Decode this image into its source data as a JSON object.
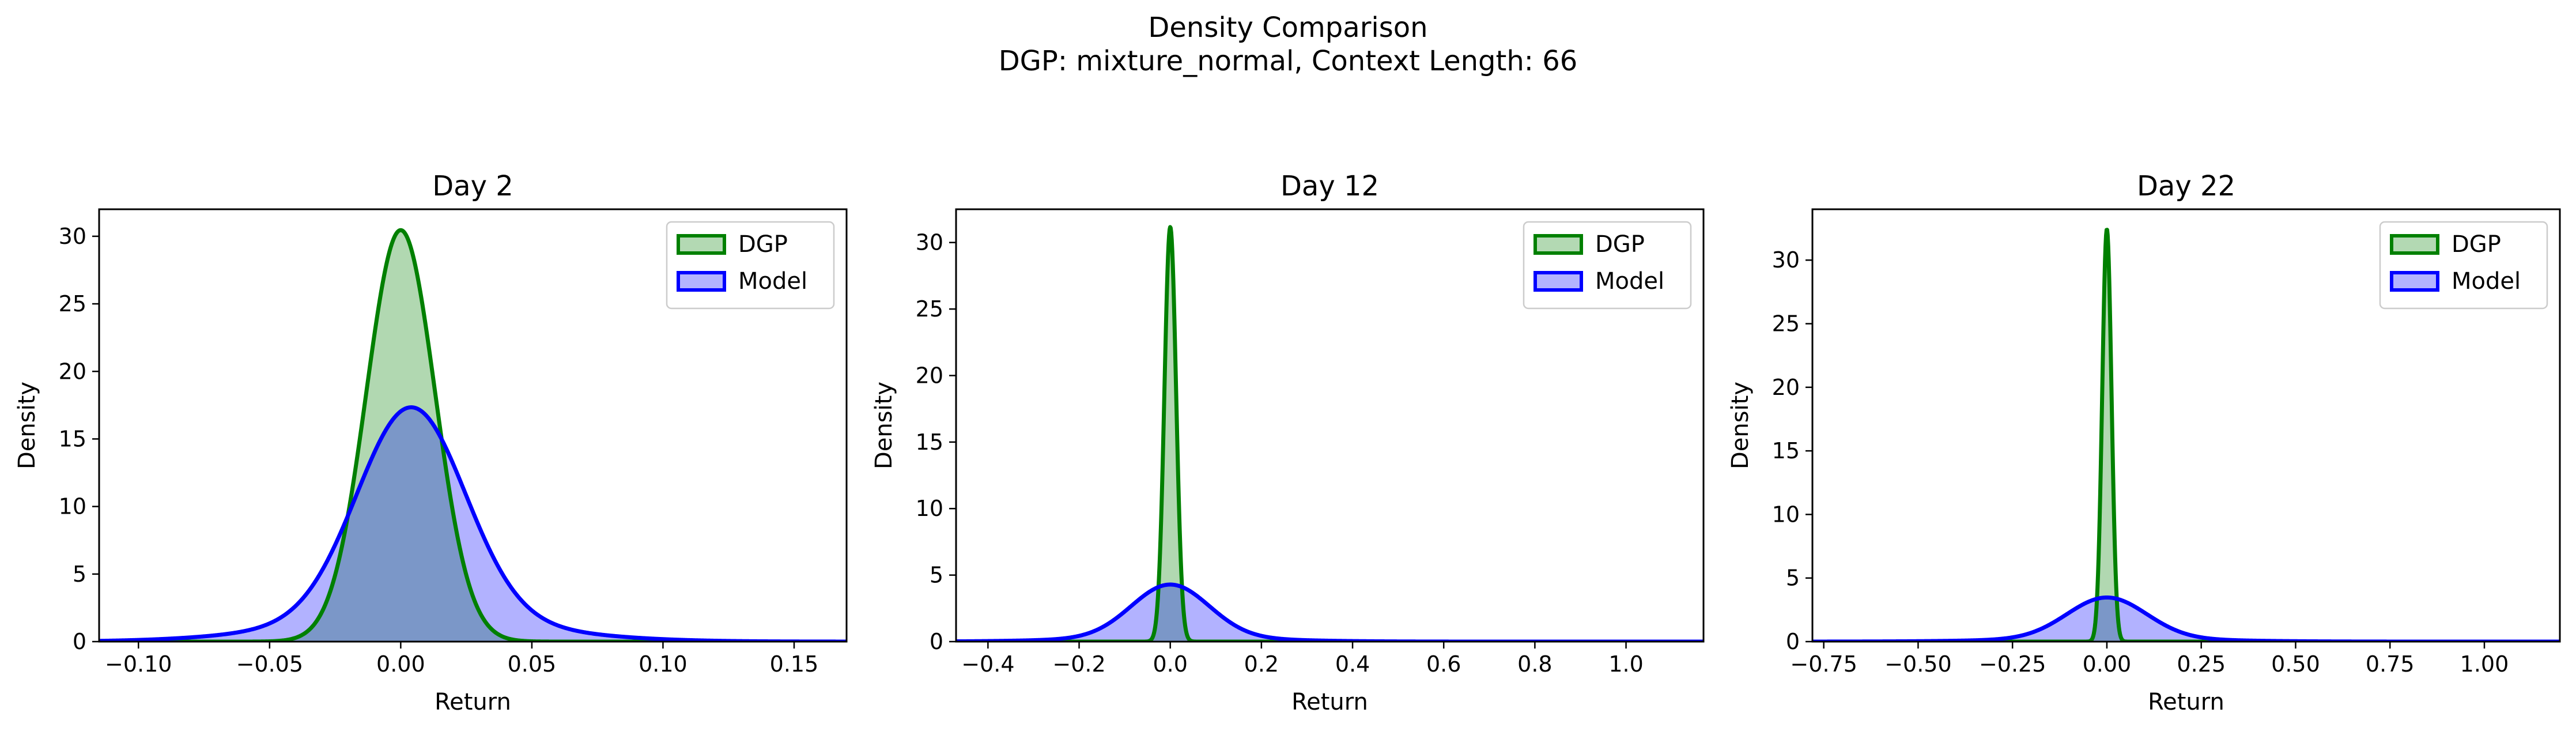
{
  "figure": {
    "title_line1": "Density Comparison",
    "title_line2": "DGP: mixture_normal, Context Length: 66"
  },
  "colors": {
    "dgp_line": "#008000",
    "dgp_fill": "#b3d9b3",
    "model_line": "#0000ff",
    "model_fill": "#b3b3ff"
  },
  "chart_data": [
    {
      "type": "area",
      "title": "Day 2",
      "xlabel": "Return",
      "ylabel": "Density",
      "xlim": [
        -0.115,
        0.17
      ],
      "ylim": [
        0,
        32
      ],
      "xticks": [
        -0.1,
        -0.05,
        0.0,
        0.05,
        0.1,
        0.15
      ],
      "xtick_labels": [
        "−0.10",
        "−0.05",
        "0.00",
        "0.05",
        "0.10",
        "0.15"
      ],
      "yticks": [
        0,
        5,
        10,
        15,
        20,
        25,
        30
      ],
      "grid": false,
      "legend": "top-right",
      "series": [
        {
          "name": "DGP",
          "dist": [
            {
              "w": 1.0,
              "mu": 0.0,
              "sigma": 0.0131
            }
          ]
        },
        {
          "name": "Model",
          "dist": [
            {
              "w": 0.8,
              "mu": 0.004,
              "sigma": 0.0205
            },
            {
              "w": 0.2,
              "mu": 0.004,
              "sigma": 0.045
            }
          ]
        }
      ]
    },
    {
      "type": "area",
      "title": "Day 12",
      "xlabel": "Return",
      "ylabel": "Density",
      "xlim": [
        -0.47,
        1.17
      ],
      "ylim": [
        0,
        32.5
      ],
      "xticks": [
        -0.4,
        -0.2,
        0.0,
        0.2,
        0.4,
        0.6,
        0.8,
        1.0
      ],
      "xtick_labels": [
        "−0.4",
        "−0.2",
        "0.0",
        "0.2",
        "0.4",
        "0.6",
        "0.8",
        "1.0"
      ],
      "yticks": [
        0,
        5,
        10,
        15,
        20,
        25,
        30
      ],
      "grid": false,
      "legend": "top-right",
      "series": [
        {
          "name": "DGP",
          "dist": [
            {
              "w": 1.0,
              "mu": 0.0,
              "sigma": 0.0128
            }
          ]
        },
        {
          "name": "Model",
          "dist": [
            {
              "w": 0.85,
              "mu": 0.0,
              "sigma": 0.085
            },
            {
              "w": 0.15,
              "mu": 0.0,
              "sigma": 0.2
            }
          ]
        }
      ]
    },
    {
      "type": "area",
      "title": "Day 22",
      "xlabel": "Return",
      "ylabel": "Density",
      "xlim": [
        -0.78,
        1.2
      ],
      "ylim": [
        0,
        34
      ],
      "xticks": [
        -0.75,
        -0.5,
        -0.25,
        0.0,
        0.25,
        0.5,
        0.75,
        1.0
      ],
      "xtick_labels": [
        "−0.75",
        "−0.50",
        "−0.25",
        "0.00",
        "0.25",
        "0.50",
        "0.75",
        "1.00"
      ],
      "yticks": [
        0,
        5,
        10,
        15,
        20,
        25,
        30
      ],
      "grid": false,
      "legend": "top-right",
      "series": [
        {
          "name": "DGP",
          "dist": [
            {
              "w": 1.0,
              "mu": 0.0,
              "sigma": 0.0123
            }
          ]
        },
        {
          "name": "Model",
          "dist": [
            {
              "w": 0.85,
              "mu": 0.0,
              "sigma": 0.105
            },
            {
              "w": 0.15,
              "mu": 0.0,
              "sigma": 0.25
            }
          ]
        }
      ]
    }
  ]
}
